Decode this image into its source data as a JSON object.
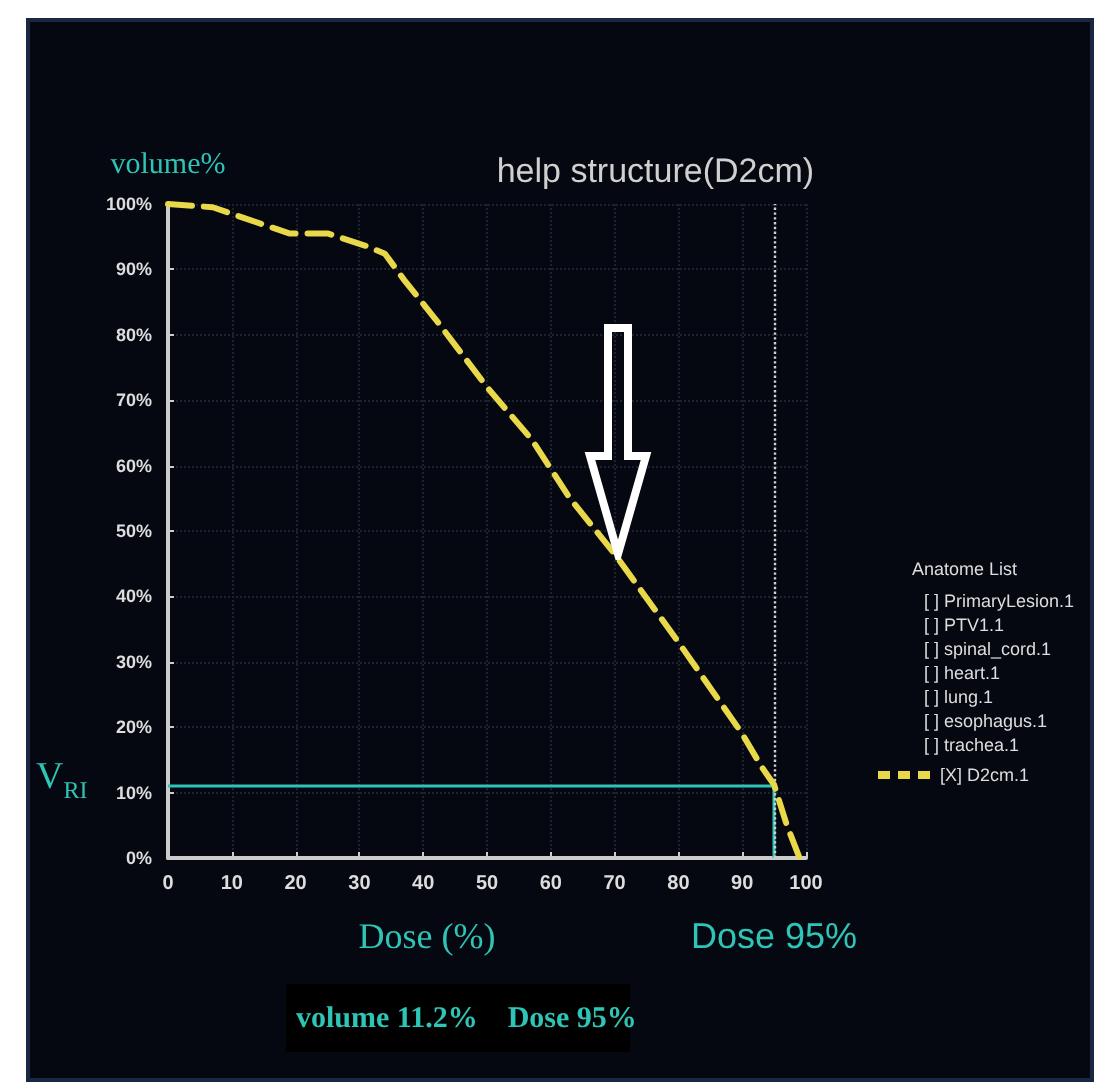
{
  "chart_data": {
    "type": "line",
    "xlabel": "Dose (%)",
    "ylabel": "volume%",
    "legend_title": "Anatome List",
    "x": [
      0,
      7,
      13,
      19,
      25,
      31,
      34,
      37,
      42,
      50,
      57,
      63,
      70,
      80,
      90,
      93,
      95,
      97,
      99
    ],
    "series": [
      {
        "name": "[X] D2cm.1",
        "color": "#e8d84a",
        "values": [
          100,
          99.5,
          97.5,
          95.5,
          95.5,
          93.6,
          92.4,
          88.4,
          82.3,
          72,
          64,
          55,
          46.5,
          33,
          19,
          14,
          11.2,
          5,
          0
        ]
      }
    ],
    "xlim": [
      0,
      100
    ],
    "xticks": [
      0,
      10,
      20,
      30,
      40,
      50,
      60,
      70,
      80,
      90,
      100
    ],
    "ylim": [
      0,
      100
    ],
    "yticks": [
      {
        "value": 0,
        "label": "0%"
      },
      {
        "value": 10,
        "label": "10%"
      },
      {
        "value": 20,
        "label": "20%"
      },
      {
        "value": 30,
        "label": "30%"
      },
      {
        "value": 40,
        "label": "40%"
      },
      {
        "value": 50,
        "label": "50%"
      },
      {
        "value": 60,
        "label": "60%"
      },
      {
        "value": 70,
        "label": "70%"
      },
      {
        "value": 80,
        "label": "80%"
      },
      {
        "value": 90,
        "label": "90%"
      },
      {
        "value": 100,
        "label": "100%"
      }
    ],
    "ref_lines": [
      {
        "axis": "y",
        "value": 11.2,
        "label": "V$_{RI}$",
        "color": "#2ec4b6",
        "line_style": "solid"
      },
      {
        "axis": "x",
        "value": 95,
        "label": "Dose 95%",
        "color": "#2ec4b6",
        "line_style": "solid"
      },
      {
        "axis": "x",
        "value": 95,
        "label": "help structure(D2cm)",
        "color": "#d0d0d0",
        "line_style": "dotted"
      }
    ],
    "annotations": [
      "[ ] PrimaryLesion.1",
      "[ ] PTV1.1",
      "[ ] spinal_cord.1",
      "[ ] heart.1",
      "[ ] lung.1",
      "[ ] esophagus.1",
      "[ ] trachea.1",
      "volume 11.2%    Dose 95%"
    ],
    "grid": true,
    "legend": "right",
    "line_style": "dashed",
    "marker": "none"
  }
}
